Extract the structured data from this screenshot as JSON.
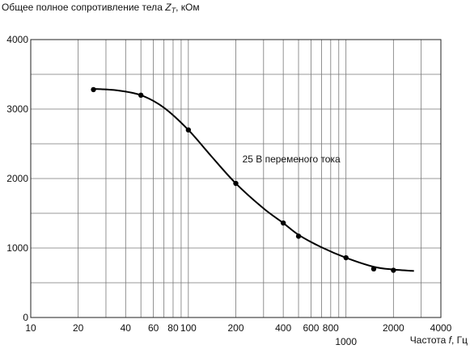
{
  "chart_data": {
    "type": "line",
    "title": "",
    "ylabel_prefix": "Общее полное сопротивление тела",
    "ylabel_symbol": "Z",
    "ylabel_subscript": "T",
    "ylabel_unit": ", кОм",
    "xlabel_prefix": "Частота",
    "xlabel_symbol": "f",
    "xlabel_unit": ", Гц",
    "x_scale": "log",
    "xlim": [
      10,
      4000
    ],
    "ylim": [
      0,
      4000
    ],
    "grid": true,
    "x_tick_labels": [
      {
        "value": 10,
        "label": "10",
        "row": 1
      },
      {
        "value": 20,
        "label": "20",
        "row": 1
      },
      {
        "value": 40,
        "label": "40",
        "row": 1
      },
      {
        "value": 60,
        "label": "60",
        "row": 1
      },
      {
        "value": 80,
        "label": "80",
        "row": 1
      },
      {
        "value": 100,
        "label": "100",
        "row": 1
      },
      {
        "value": 200,
        "label": "200",
        "row": 1
      },
      {
        "value": 400,
        "label": "400",
        "row": 1
      },
      {
        "value": 600,
        "label": "600",
        "row": 1
      },
      {
        "value": 800,
        "label": "800",
        "row": 1
      },
      {
        "value": 1000,
        "label": "1000",
        "row": 2
      },
      {
        "value": 2000,
        "label": "2000",
        "row": 1
      },
      {
        "value": 4000,
        "label": "4000",
        "row": 1
      }
    ],
    "x_gridlines": [
      10,
      20,
      30,
      40,
      50,
      60,
      70,
      80,
      90,
      100,
      200,
      300,
      400,
      500,
      600,
      700,
      800,
      900,
      1000,
      2000,
      3000,
      4000
    ],
    "y_ticks": [
      0,
      1000,
      2000,
      3000,
      4000
    ],
    "y_gridlines": [
      0,
      500,
      1000,
      1500,
      2000,
      2500,
      3000,
      3500,
      4000
    ],
    "series": [
      {
        "name": "25 В переменого тока",
        "points": [
          {
            "x": 25,
            "y": 3280
          },
          {
            "x": 50,
            "y": 3200
          },
          {
            "x": 100,
            "y": 2700
          },
          {
            "x": 200,
            "y": 1930
          },
          {
            "x": 400,
            "y": 1360
          },
          {
            "x": 500,
            "y": 1170
          },
          {
            "x": 1000,
            "y": 860
          },
          {
            "x": 1500,
            "y": 700
          },
          {
            "x": 2000,
            "y": 680
          }
        ],
        "curve": [
          {
            "x": 25,
            "y": 3290
          },
          {
            "x": 35,
            "y": 3270
          },
          {
            "x": 50,
            "y": 3200
          },
          {
            "x": 70,
            "y": 3020
          },
          {
            "x": 100,
            "y": 2700
          },
          {
            "x": 140,
            "y": 2320
          },
          {
            "x": 200,
            "y": 1930
          },
          {
            "x": 300,
            "y": 1570
          },
          {
            "x": 400,
            "y": 1360
          },
          {
            "x": 500,
            "y": 1190
          },
          {
            "x": 700,
            "y": 1010
          },
          {
            "x": 1000,
            "y": 860
          },
          {
            "x": 1500,
            "y": 730
          },
          {
            "x": 2000,
            "y": 690
          },
          {
            "x": 2700,
            "y": 670
          }
        ]
      }
    ],
    "annotations": [
      {
        "text": "25 В переменого тока",
        "x": 220,
        "y": 2230
      }
    ]
  }
}
